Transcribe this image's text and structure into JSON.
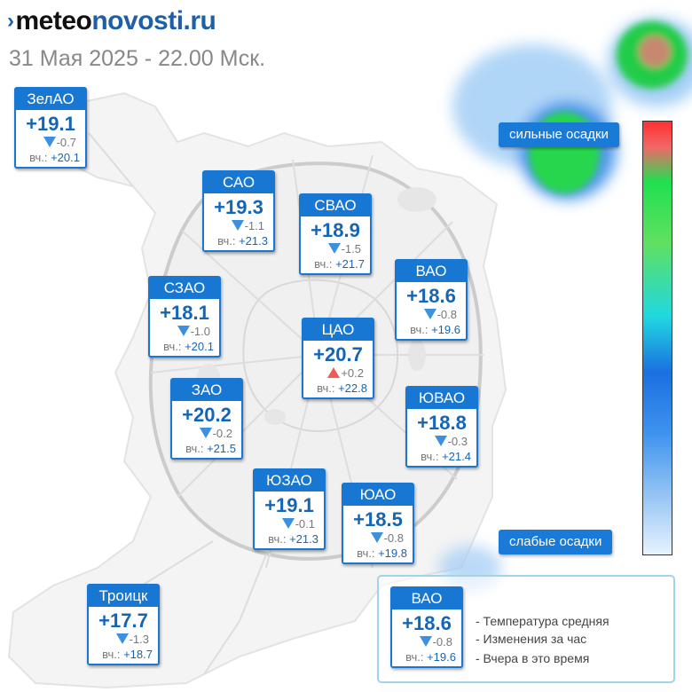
{
  "header": {
    "logo_chevron": "›",
    "logo_part1": "meteo",
    "logo_part2": "novosti.ru",
    "date": "31 Мая 2025 - 22.00 Мск."
  },
  "districts": [
    {
      "name": "ЗелАО",
      "temp": "+19.1",
      "change": "-0.7",
      "trend": "down",
      "yesterday_label": "вч.:",
      "yesterday": "+20.1"
    },
    {
      "name": "САО",
      "temp": "+19.3",
      "change": "-1.1",
      "trend": "down",
      "yesterday_label": "вч.:",
      "yesterday": "+21.3"
    },
    {
      "name": "СВАО",
      "temp": "+18.9",
      "change": "-1.5",
      "trend": "down",
      "yesterday_label": "вч.:",
      "yesterday": "+21.7"
    },
    {
      "name": "ВАО",
      "temp": "+18.6",
      "change": "-0.8",
      "trend": "down",
      "yesterday_label": "вч.:",
      "yesterday": "+19.6"
    },
    {
      "name": "СЗАО",
      "temp": "+18.1",
      "change": "-1.0",
      "trend": "down",
      "yesterday_label": "вч.:",
      "yesterday": "+20.1"
    },
    {
      "name": "ЦАО",
      "temp": "+20.7",
      "change": "+0.2",
      "trend": "up",
      "yesterday_label": "вч.:",
      "yesterday": "+22.8"
    },
    {
      "name": "ЗАО",
      "temp": "+20.2",
      "change": "-0.2",
      "trend": "down",
      "yesterday_label": "вч.:",
      "yesterday": "+21.5"
    },
    {
      "name": "ЮВАО",
      "temp": "+18.8",
      "change": "-0.3",
      "trend": "down",
      "yesterday_label": "вч.:",
      "yesterday": "+21.4"
    },
    {
      "name": "ЮЗАО",
      "temp": "+19.1",
      "change": "-0.1",
      "trend": "down",
      "yesterday_label": "вч.:",
      "yesterday": "+21.3"
    },
    {
      "name": "ЮАО",
      "temp": "+18.5",
      "change": "-0.8",
      "trend": "down",
      "yesterday_label": "вч.:",
      "yesterday": "+19.8"
    },
    {
      "name": "Троицк",
      "temp": "+17.7",
      "change": "-1.3",
      "trend": "down",
      "yesterday_label": "вч.:",
      "yesterday": "+18.7"
    }
  ],
  "precip_scale": {
    "high_label": "сильные осадки",
    "low_label": "слабые осадки"
  },
  "legend": {
    "sample": {
      "name": "ВАО",
      "temp": "+18.6",
      "change": "-0.8",
      "trend": "down",
      "yesterday_label": "вч.:",
      "yesterday": "+19.6"
    },
    "line1": "- Температура средняя",
    "line2": "- Изменения за час",
    "line3": "- Вчера в это время"
  },
  "colors": {
    "accent": "#1877d3",
    "temp_text": "#1565b5",
    "trend_down": "#3d8fe0",
    "trend_up": "#ee5b5b"
  }
}
